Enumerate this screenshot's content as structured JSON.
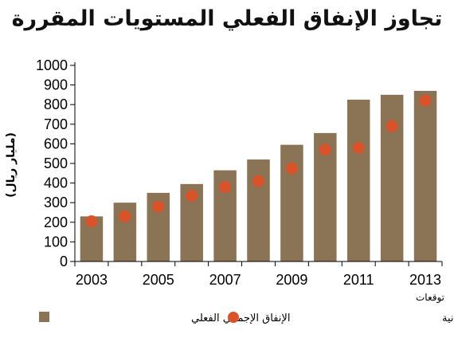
{
  "chart_data": {
    "type": "bar",
    "title": "تجاوز الإنفاق الفعلي المستويات المقررة",
    "ylabel": "(مليار ريال)",
    "ylim": [
      0,
      1000
    ],
    "yticks": [
      0,
      100,
      200,
      300,
      400,
      500,
      600,
      700,
      800,
      900,
      1000
    ],
    "categories": [
      "2003",
      "2004",
      "2005",
      "2006",
      "2007",
      "2008",
      "2009",
      "2010",
      "2011",
      "2012",
      "2013"
    ],
    "xtick_labels": [
      "2003",
      "2005",
      "2007",
      "2009",
      "2011",
      "2013"
    ],
    "note_last_category": "توقعات",
    "series": [
      {
        "name": "الإنفاق الإجمالي الفعلي",
        "kind": "bar",
        "color": "#8b7355",
        "values": [
          230,
          300,
          350,
          395,
          465,
          520,
          595,
          655,
          825,
          850,
          870
        ]
      },
      {
        "name": "الإنفاق الإجمالي المقرر في الميزانية",
        "kind": "dot",
        "color": "#d9532a",
        "values": [
          205,
          230,
          280,
          335,
          380,
          410,
          475,
          570,
          580,
          690,
          820
        ]
      }
    ],
    "grid": false,
    "legend_position": "bottom"
  }
}
